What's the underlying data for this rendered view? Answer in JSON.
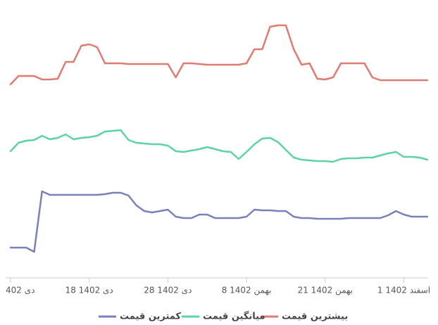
{
  "chart_data": {
    "type": "line",
    "categories": [
      "402 دی",
      null,
      null,
      null,
      null,
      null,
      null,
      null,
      null,
      null,
      "18 1402 دی",
      null,
      null,
      null,
      null,
      null,
      null,
      null,
      null,
      null,
      "28 1402 دی",
      null,
      null,
      null,
      null,
      null,
      null,
      null,
      null,
      null,
      "8 1402 بهمن",
      null,
      null,
      null,
      null,
      null,
      null,
      null,
      null,
      null,
      "21 1402 بهمن",
      null,
      null,
      null,
      null,
      null,
      null,
      null,
      null,
      null,
      "1 1402 اسفند",
      null,
      null,
      null
    ],
    "series": [
      {
        "name": "بیشترین قیمت",
        "color": "#e07b72",
        "values": [
          280,
          292,
          292,
          292,
          287,
          287,
          288,
          312,
          312,
          335,
          337,
          333,
          310,
          310,
          310,
          309,
          309,
          309,
          309,
          309,
          309,
          290,
          310,
          310,
          309,
          308,
          308,
          308,
          308,
          308,
          310,
          330,
          330,
          362,
          364,
          364,
          330,
          308,
          310,
          288,
          287,
          290,
          310,
          310,
          310,
          310,
          290,
          286,
          286,
          286,
          286,
          286,
          286,
          286
        ]
      },
      {
        "name": "میانگین قیمت",
        "color": "#5dd3a3",
        "values": [
          185,
          197,
          200,
          201,
          207,
          202,
          204,
          209,
          202,
          204,
          205,
          207,
          213,
          214,
          215,
          201,
          197,
          196,
          195,
          195,
          193,
          185,
          184,
          186,
          188,
          191,
          188,
          185,
          184,
          174,
          184,
          195,
          203,
          204,
          198,
          187,
          176,
          173,
          172,
          171,
          171,
          170,
          174,
          175,
          175,
          176,
          176,
          179,
          182,
          184,
          177,
          177,
          176,
          173
        ]
      },
      {
        "name": "کمترین قیمت",
        "color": "#7a80b8",
        "values": [
          48,
          48,
          48,
          42,
          128,
          123,
          123,
          123,
          123,
          123,
          123,
          123,
          124,
          126,
          126,
          122,
          108,
          100,
          98,
          100,
          102,
          92,
          90,
          90,
          95,
          95,
          90,
          90,
          90,
          90,
          92,
          102,
          101,
          101,
          100,
          100,
          92,
          90,
          90,
          89,
          89,
          89,
          89,
          90,
          90,
          90,
          90,
          90,
          94,
          100,
          95,
          92,
          92,
          92
        ]
      }
    ],
    "ylim": [
      0,
      400
    ],
    "legend": "bottom"
  }
}
